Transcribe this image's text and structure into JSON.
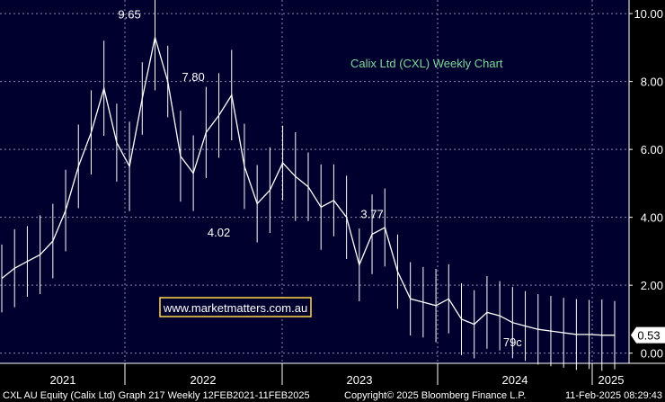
{
  "chart_data": {
    "type": "line",
    "title": "Calix Ltd (CXL) Weekly Chart",
    "xlabel": "",
    "ylabel": "",
    "ylim": [
      -0.3,
      10.4
    ],
    "yticks": [
      "10.00",
      "8.00",
      "6.00",
      "4.00",
      "2.00",
      "0.00"
    ],
    "ytick_values": [
      10,
      8,
      6,
      4,
      2,
      0
    ],
    "xticks": [
      "2021",
      "2022",
      "2023",
      "2024",
      "2025"
    ],
    "grid": true,
    "x": [
      "Feb-2021",
      "Mar-2021",
      "Apr-2021",
      "May-2021",
      "Jun-2021",
      "Jul-2021",
      "Aug-2021",
      "Sep-2021",
      "Oct-2021",
      "Nov-2021",
      "Dec-2021",
      "Jan-2022",
      "Feb-2022",
      "Mar-2022",
      "Apr-2022",
      "May-2022",
      "Jun-2022",
      "Jul-2022",
      "Aug-2022",
      "Sep-2022",
      "Oct-2022",
      "Nov-2022",
      "Dec-2022",
      "Jan-2023",
      "Feb-2023",
      "Mar-2023",
      "Apr-2023",
      "May-2023",
      "Jun-2023",
      "Jul-2023",
      "Aug-2023",
      "Sep-2023",
      "Oct-2023",
      "Nov-2023",
      "Dec-2023",
      "Jan-2024",
      "Feb-2024",
      "Mar-2024",
      "Apr-2024",
      "May-2024",
      "Jun-2024",
      "Jul-2024",
      "Aug-2024",
      "Sep-2024",
      "Oct-2024",
      "Nov-2024",
      "Dec-2024",
      "Jan-2025",
      "Feb-2025"
    ],
    "series": [
      {
        "values": [
          2.2,
          2.5,
          2.7,
          2.9,
          3.3,
          4.2,
          5.5,
          6.5,
          7.8,
          6.2,
          5.5,
          7.5,
          9.3,
          8.0,
          5.8,
          5.3,
          6.5,
          7.0,
          7.6,
          5.5,
          4.4,
          4.8,
          5.6,
          5.2,
          4.9,
          4.3,
          4.5,
          4.0,
          2.6,
          3.5,
          3.7,
          2.4,
          1.6,
          1.5,
          1.4,
          1.6,
          1.0,
          0.85,
          1.2,
          1.1,
          0.9,
          0.8,
          0.7,
          0.65,
          0.6,
          0.55,
          0.55,
          0.53,
          0.53
        ]
      }
    ],
    "annotations": [
      {
        "text": "9.65",
        "x": "Dec-2021",
        "y": 9.65
      },
      {
        "text": "7.80",
        "x": "May-2022",
        "y": 7.8
      },
      {
        "text": "4.02",
        "x": "Jul-2022",
        "y": 4.02
      },
      {
        "text": "3.77",
        "x": "Jul-2023",
        "y": 3.77
      },
      {
        "text": "79c",
        "x": "Jun-2024",
        "y": 0.79
      }
    ],
    "last_value_label": "0.53"
  },
  "watermark": "www.marketmatters.com.au",
  "footer": {
    "left": "CXL AU Equity (Calix Ltd) Graph 217  Weekly 12FEB2021-11FEB2025",
    "center": "Copyright© 2025 Bloomberg Finance L.P.",
    "right": "11-Feb-2025 08:29:43"
  },
  "colors": {
    "background": "#00002e",
    "grid": "#8a8ab0",
    "line": "#ffffff",
    "title": "#7fd99a",
    "watermark_border": "#ffd84a",
    "axis_text": "#ffffff"
  }
}
